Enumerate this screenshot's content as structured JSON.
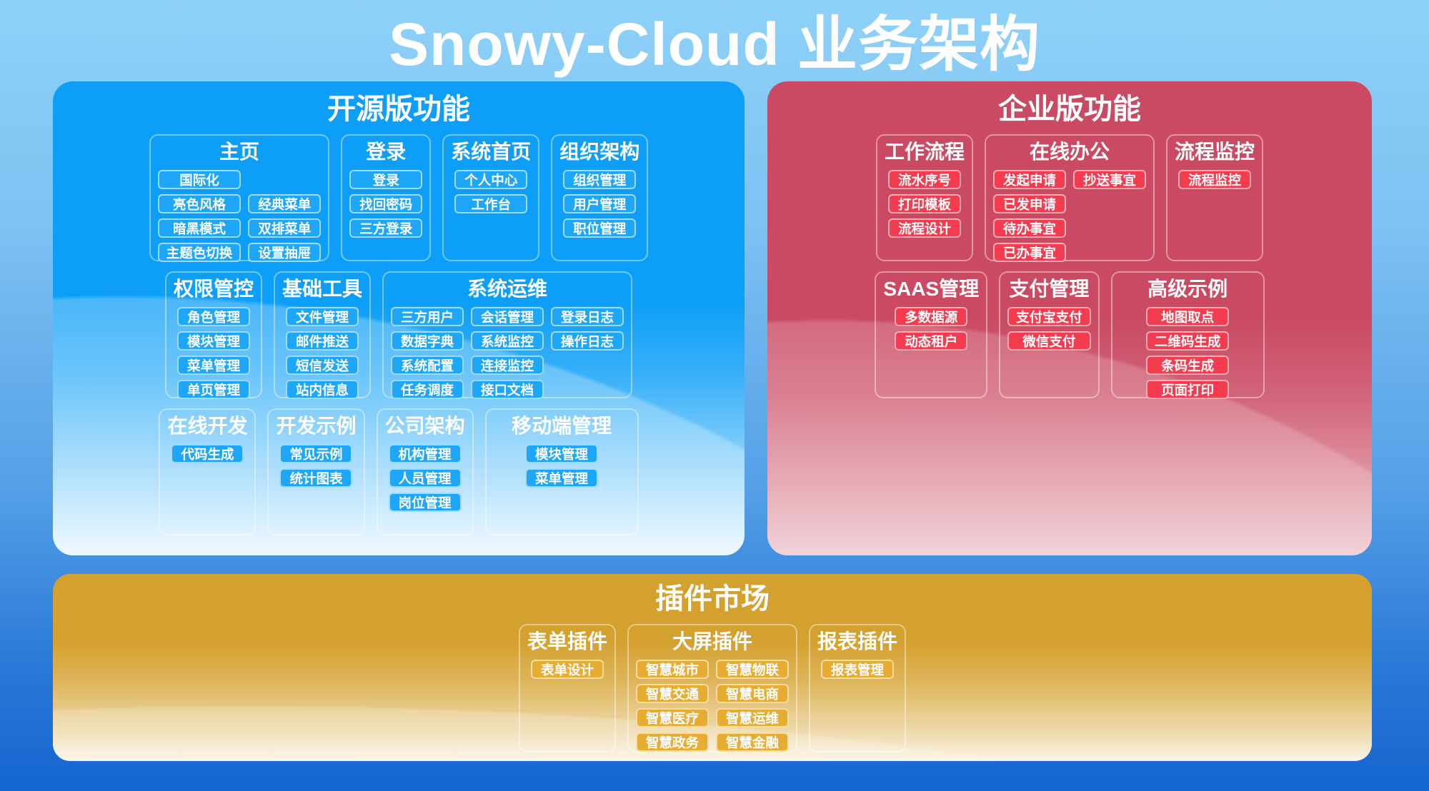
{
  "title": "Snowy-Cloud 业务架构",
  "colors": {
    "background_top": "#8ed1f8",
    "background_bottom": "#1565d0",
    "blue_panel": "#0d9ff7",
    "blue_button": "#1ea7f8",
    "red_panel": "#ca4a63",
    "red_button": "#f43c50",
    "gold_panel": "#d5a12e",
    "gold_button": "#e7ad33",
    "text": "#ffffff"
  },
  "sections": [
    {
      "id": "open-source",
      "title": "开源版功能",
      "theme": "blue",
      "rows": [
        [
          {
            "title": "主页",
            "cols": 2,
            "cells": [
              "国际化",
              "",
              "亮色风格",
              "经典菜单",
              "暗黑模式",
              "双排菜单",
              "主题色切换",
              "设置抽屉"
            ]
          },
          {
            "title": "登录",
            "cols": 1,
            "cells": [
              "登录",
              "找回密码",
              "三方登录"
            ]
          },
          {
            "title": "系统首页",
            "cols": 1,
            "cells": [
              "个人中心",
              "工作台"
            ]
          },
          {
            "title": "组织架构",
            "cols": 1,
            "cells": [
              "组织管理",
              "用户管理",
              "职位管理"
            ]
          }
        ],
        [
          {
            "title": "权限管控",
            "cols": 1,
            "cells": [
              "角色管理",
              "模块管理",
              "菜单管理",
              "单页管理"
            ]
          },
          {
            "title": "基础工具",
            "cols": 1,
            "cells": [
              "文件管理",
              "邮件推送",
              "短信发送",
              "站内信息"
            ]
          },
          {
            "title": "系统运维",
            "cols": 3,
            "cells": [
              "三方用户",
              "会话管理",
              "登录日志",
              "数据字典",
              "系统监控",
              "操作日志",
              "系统配置",
              "连接监控",
              "",
              "任务调度",
              "接口文档",
              ""
            ]
          }
        ],
        [
          {
            "title": "在线开发",
            "cols": 1,
            "cells": [
              "代码生成"
            ]
          },
          {
            "title": "开发示例",
            "cols": 1,
            "cells": [
              "常见示例",
              "统计图表"
            ]
          },
          {
            "title": "公司架构",
            "cols": 1,
            "cells": [
              "机构管理",
              "人员管理",
              "岗位管理"
            ]
          },
          {
            "title": "移动端管理",
            "cols": 1,
            "wide": true,
            "cells": [
              "模块管理",
              "菜单管理"
            ]
          }
        ]
      ]
    },
    {
      "id": "enterprise",
      "title": "企业版功能",
      "theme": "red",
      "rows": [
        [
          {
            "title": "工作流程",
            "cols": 1,
            "cells": [
              "流水序号",
              "打印模板",
              "流程设计"
            ]
          },
          {
            "title": "在线办公",
            "cols": 2,
            "cells": [
              "发起申请",
              "抄送事宜",
              "已发申请",
              "",
              "待办事宜",
              "",
              "已办事宜",
              ""
            ]
          },
          {
            "title": "流程监控",
            "cols": 1,
            "cells": [
              "流程监控"
            ]
          }
        ],
        [
          {
            "title": "SAAS管理",
            "cols": 1,
            "cells": [
              "多数据源",
              "动态租户"
            ]
          },
          {
            "title": "支付管理",
            "cols": 1,
            "cells": [
              "支付宝支付",
              "微信支付"
            ]
          },
          {
            "title": "高级示例",
            "cols": 1,
            "wide": true,
            "cells": [
              "地图取点",
              "二维码生成",
              "条码生成",
              "页面打印"
            ]
          }
        ]
      ]
    },
    {
      "id": "plugin-market",
      "title": "插件市场",
      "theme": "gold",
      "rows": [
        [
          {
            "title": "表单插件",
            "cols": 1,
            "cells": [
              "表单设计"
            ]
          },
          {
            "title": "大屏插件",
            "cols": 2,
            "cells": [
              "智慧城市",
              "智慧物联",
              "智慧交通",
              "智慧电商",
              "智慧医疗",
              "智慧运维",
              "智慧政务",
              "智慧金融"
            ]
          },
          {
            "title": "报表插件",
            "cols": 1,
            "cells": [
              "报表管理"
            ]
          }
        ]
      ]
    }
  ]
}
